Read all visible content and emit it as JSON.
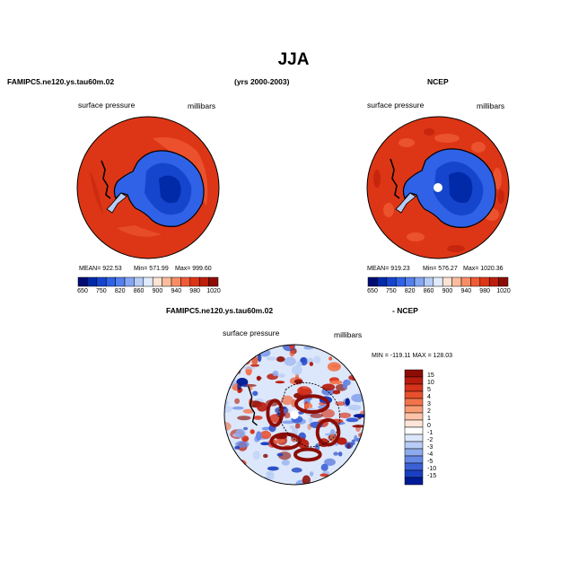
{
  "page": {
    "title": "JJA",
    "model_name": "FAMIPC5.ne120.ys.tau60m.02",
    "years": "(yrs 2000-2003)",
    "obs_name": "NCEP",
    "diff_model_name": "FAMIPC5.ne120.ys.tau60m.02",
    "diff_obs_name": "- NCEP"
  },
  "chart_data": [
    {
      "type": "heatmap",
      "title": "FAMIPC5.ne120.ys.tau60m.02",
      "variable": "surface pressure",
      "units": "millibars",
      "projection": "south-polar-stereographic",
      "stats": {
        "mean": "MEAN= 922.53",
        "min": "Min= 571.99",
        "max": "Max= 999.60"
      },
      "colorbar": {
        "orientation": "horizontal",
        "levels": [
          "650",
          "750",
          "820",
          "860",
          "900",
          "940",
          "980",
          "1020"
        ],
        "colors": [
          "#000c73",
          "#002aa8",
          "#1545cc",
          "#2f62e6",
          "#5480ee",
          "#84a6f3",
          "#b7cdf8",
          "#e2ebfc",
          "#fde3d3",
          "#fbbc9c",
          "#f78d66",
          "#ef5b35",
          "#dd3616",
          "#bd1f0c",
          "#8c0d06"
        ]
      }
    },
    {
      "type": "heatmap",
      "title": "NCEP",
      "variable": "surface pressure",
      "units": "millibars",
      "projection": "south-polar-stereographic",
      "stats": {
        "mean": "MEAN= 919.23",
        "min": "Min= 576.27",
        "max": "Max= 1020.36"
      },
      "colorbar": {
        "orientation": "horizontal",
        "levels": [
          "650",
          "750",
          "820",
          "860",
          "900",
          "940",
          "980",
          "1020"
        ],
        "colors": [
          "#000c73",
          "#002aa8",
          "#1545cc",
          "#2f62e6",
          "#5480ee",
          "#84a6f3",
          "#b7cdf8",
          "#e2ebfc",
          "#fde3d3",
          "#fbbc9c",
          "#f78d66",
          "#ef5b35",
          "#dd3616",
          "#bd1f0c",
          "#8c0d06"
        ]
      }
    },
    {
      "type": "heatmap",
      "title": "FAMIPC5.ne120.ys.tau60m.02 - NCEP",
      "variable": "surface pressure",
      "units": "millibars",
      "projection": "south-polar-stereographic",
      "stats": {
        "minmax": "MIN = -119.11  MAX = 128.03"
      },
      "colorbar": {
        "orientation": "vertical",
        "levels": [
          "15",
          "10",
          "5",
          "4",
          "3",
          "2",
          "1",
          "0",
          "-1",
          "-2",
          "-3",
          "-4",
          "-5",
          "-10",
          "-15"
        ],
        "colors": [
          "#8c0d06",
          "#b81c0e",
          "#d8321a",
          "#e8502c",
          "#f2744a",
          "#f89c73",
          "#fcc3a8",
          "#fde6d8",
          "#ffffff",
          "#dce7fb",
          "#b8ccf5",
          "#8eaaee",
          "#6587e6",
          "#3b61d6",
          "#1a3fc2",
          "#001a96"
        ]
      }
    }
  ]
}
